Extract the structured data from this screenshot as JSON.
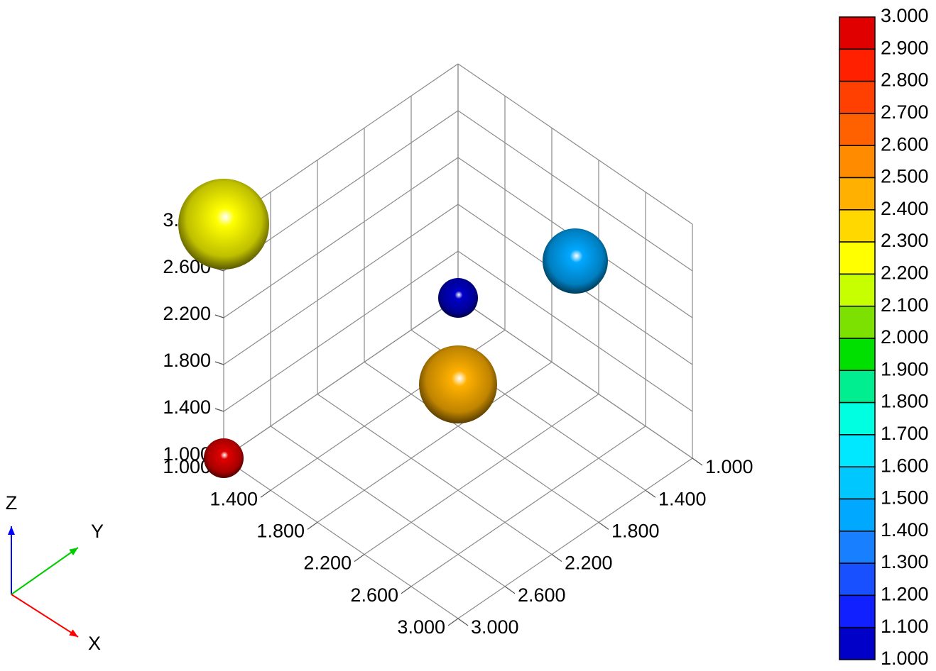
{
  "chart_data": {
    "type": "scatter",
    "subtype": "3d-bubble",
    "x_ticks": [
      "1.000",
      "1.400",
      "1.800",
      "2.200",
      "2.600",
      "3.000"
    ],
    "y_ticks": [
      "1.000",
      "1.400",
      "1.800",
      "2.200",
      "2.600",
      "3.000"
    ],
    "z_ticks": [
      "1.000",
      "1.400",
      "1.800",
      "2.200",
      "2.600",
      "3.000"
    ],
    "xlim": [
      1,
      3
    ],
    "ylim": [
      1,
      3
    ],
    "zlim": [
      1,
      3
    ],
    "grid": true,
    "points": [
      {
        "x": 1.0,
        "y": 1.0,
        "z": 1.0,
        "value": 1.0,
        "size": 1.0
      },
      {
        "x": 2.0,
        "y": 1.0,
        "z": 2.0,
        "value": 1.5,
        "size": 2.0
      },
      {
        "x": 1.0,
        "y": 3.0,
        "z": 3.0,
        "value": 2.2,
        "size": 3.0
      },
      {
        "x": 3.0,
        "y": 3.0,
        "z": 3.0,
        "value": 2.5,
        "size": 2.5
      },
      {
        "x": 1.0,
        "y": 3.0,
        "z": 1.0,
        "value": 3.0,
        "size": 1.0
      }
    ],
    "colorbar": {
      "min": 1.0,
      "max": 3.0,
      "labels": [
        "3.000",
        "2.900",
        "2.800",
        "2.700",
        "2.600",
        "2.500",
        "2.400",
        "2.300",
        "2.200",
        "2.100",
        "2.000",
        "1.900",
        "1.800",
        "1.700",
        "1.600",
        "1.500",
        "1.400",
        "1.300",
        "1.200",
        "1.100",
        "1.000"
      ],
      "colors": [
        "#e00000",
        "#ff2000",
        "#ff4000",
        "#ff6000",
        "#ff8c00",
        "#ffb000",
        "#ffd800",
        "#ffff00",
        "#c8ff00",
        "#7ce000",
        "#00e000",
        "#00ee90",
        "#00ffe0",
        "#00e8ff",
        "#00c8ff",
        "#00a8ff",
        "#1880ff",
        "#1850ff",
        "#1020ff",
        "#0000c8"
      ]
    },
    "axes_indicator": {
      "x": "X",
      "y": "Y",
      "z": "Z"
    },
    "axis_colors": {
      "x": "#ff0000",
      "y": "#00cc00",
      "z": "#0000ff"
    }
  }
}
